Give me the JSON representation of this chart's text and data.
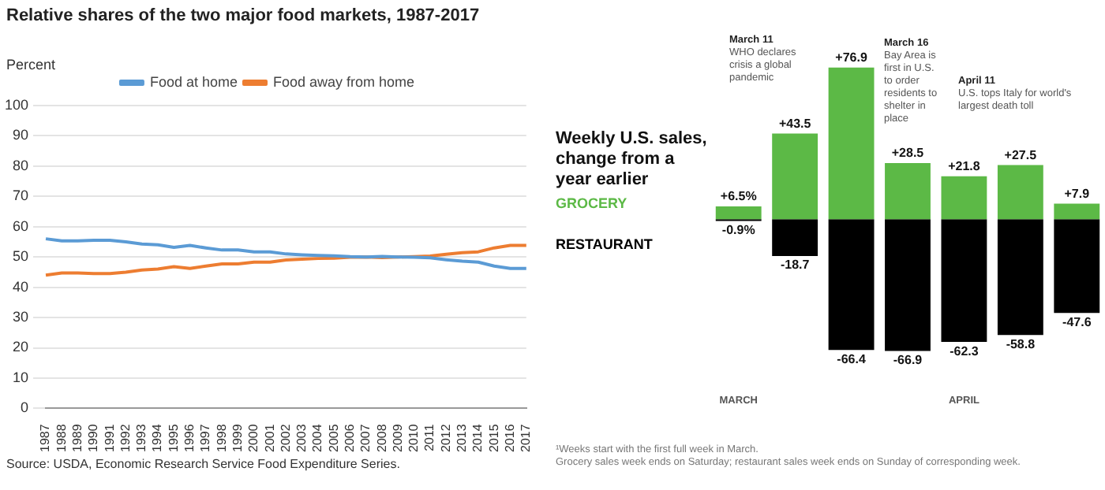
{
  "chart_data": [
    {
      "type": "line",
      "title": "Relative shares of the two major food markets, 1987-2017",
      "ylabel": "Percent",
      "categories": [
        "1987",
        "1988",
        "1989",
        "1990",
        "1991",
        "1992",
        "1993",
        "1994",
        "1995",
        "1996",
        "1997",
        "1998",
        "1999",
        "2000",
        "2001",
        "2002",
        "2003",
        "2004",
        "2005",
        "2006",
        "2007",
        "2008",
        "2009",
        "2010",
        "2011",
        "2012",
        "2013",
        "2014",
        "2015",
        "2016",
        "2017"
      ],
      "series": [
        {
          "name": "Food at home",
          "color": "#5b9bd5",
          "values": [
            56,
            55.3,
            55.3,
            55.5,
            55.5,
            55,
            54.3,
            54,
            53.2,
            53.8,
            53,
            52.3,
            52.3,
            51.7,
            51.7,
            51,
            50.7,
            50.5,
            50.4,
            50.1,
            50,
            50.2,
            50,
            49.9,
            49.7,
            49.1,
            48.6,
            48.3,
            47,
            46.2,
            46.2
          ]
        },
        {
          "name": "Food away from home",
          "color": "#ed7d31",
          "values": [
            44,
            44.7,
            44.7,
            44.5,
            44.5,
            45,
            45.7,
            46,
            46.8,
            46.2,
            47,
            47.7,
            47.7,
            48.3,
            48.3,
            49,
            49.3,
            49.5,
            49.6,
            49.9,
            50,
            49.8,
            50,
            50.1,
            50.3,
            50.9,
            51.4,
            51.7,
            53,
            53.8,
            53.8
          ]
        }
      ],
      "ylim": [
        0,
        100
      ],
      "yticks": [
        0,
        10,
        20,
        30,
        40,
        50,
        60,
        70,
        80,
        90,
        100
      ],
      "grid": "y",
      "legend": "top",
      "marker": "none",
      "annotations": [
        "Source: USDA, Economic Research Service Food Expenditure Series."
      ]
    },
    {
      "type": "bar",
      "title": "Weekly U.S. sales, change from a year earlier",
      "categories": [
        "MARCH",
        null,
        null,
        null,
        "APRIL",
        null,
        null
      ],
      "stacked": true,
      "legend": "left",
      "series": [
        {
          "name": "GROCERY",
          "color": "#5cb946",
          "values": [
            6.5,
            43.5,
            76.9,
            28.5,
            21.8,
            27.5,
            7.9
          ],
          "value_labels": [
            "+6.5%",
            "+43.5",
            "+76.9",
            "+28.5",
            "+21.8",
            "+27.5",
            "+7.9"
          ]
        },
        {
          "name": "RESTAURANT",
          "color": "#000000",
          "values": [
            -0.9,
            -18.7,
            -66.4,
            -66.9,
            -62.3,
            -58.8,
            -47.6
          ],
          "value_labels": [
            "-0.9%",
            "-18.7",
            "-66.4",
            "-66.9",
            "-62.3",
            "-58.8",
            "-47.6"
          ]
        }
      ],
      "annotations": [
        "March 11\nWHO declares\ncrisis a global\npandemic",
        "March 16\nBay Area is\nfirst in U.S.\nto order\nresidents to\nshelter in\nplace",
        "April 11\nU.S. tops Italy for world's\nlargest death toll",
        "¹Weeks start with the first full week in March.\nGrocery sales week ends on Saturday; restaurant sales week ends on Sunday of corresponding week."
      ]
    }
  ]
}
